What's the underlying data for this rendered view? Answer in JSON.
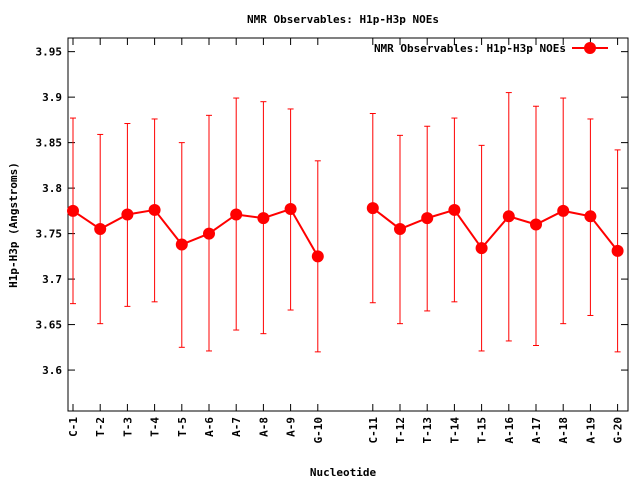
{
  "chart_data": {
    "type": "line",
    "title": "NMR Observables: H1p-H3p NOEs",
    "xlabel": "Nucleotide",
    "ylabel": "H1p-H3p (Angstroms)",
    "ylim": [
      3.555,
      3.965
    ],
    "yticks": [
      3.6,
      3.65,
      3.7,
      3.75,
      3.8,
      3.85,
      3.9,
      3.95
    ],
    "ytick_labels": [
      "3.6",
      "3.65",
      "3.7",
      "3.75",
      "3.8",
      "3.85",
      "3.9",
      "3.95"
    ],
    "grid": false,
    "legend_position": "top-right",
    "categories": [
      "C-1",
      "T-2",
      "T-3",
      "T-4",
      "T-5",
      "A-6",
      "A-7",
      "A-8",
      "A-9",
      "G-10",
      "C-11",
      "T-12",
      "T-13",
      "T-14",
      "T-15",
      "A-16",
      "A-17",
      "A-18",
      "A-19",
      "G-20"
    ],
    "series": [
      {
        "name": "NMR Observables: H1p-H3p NOEs",
        "color": "#ff0000",
        "values": [
          3.775,
          3.755,
          3.771,
          3.776,
          3.738,
          3.75,
          3.771,
          3.767,
          3.777,
          3.725,
          3.778,
          3.755,
          3.767,
          3.776,
          3.734,
          3.769,
          3.76,
          3.775,
          3.769,
          3.731
        ],
        "err_low": [
          3.673,
          3.651,
          3.67,
          3.675,
          3.625,
          3.621,
          3.644,
          3.64,
          3.666,
          3.62,
          3.674,
          3.651,
          3.665,
          3.675,
          3.621,
          3.632,
          3.627,
          3.651,
          3.66,
          3.62
        ],
        "err_high": [
          3.877,
          3.859,
          3.871,
          3.876,
          3.85,
          3.88,
          3.899,
          3.895,
          3.887,
          3.83,
          3.882,
          3.858,
          3.868,
          3.877,
          3.847,
          3.905,
          3.89,
          3.899,
          3.876,
          3.842
        ]
      }
    ]
  }
}
